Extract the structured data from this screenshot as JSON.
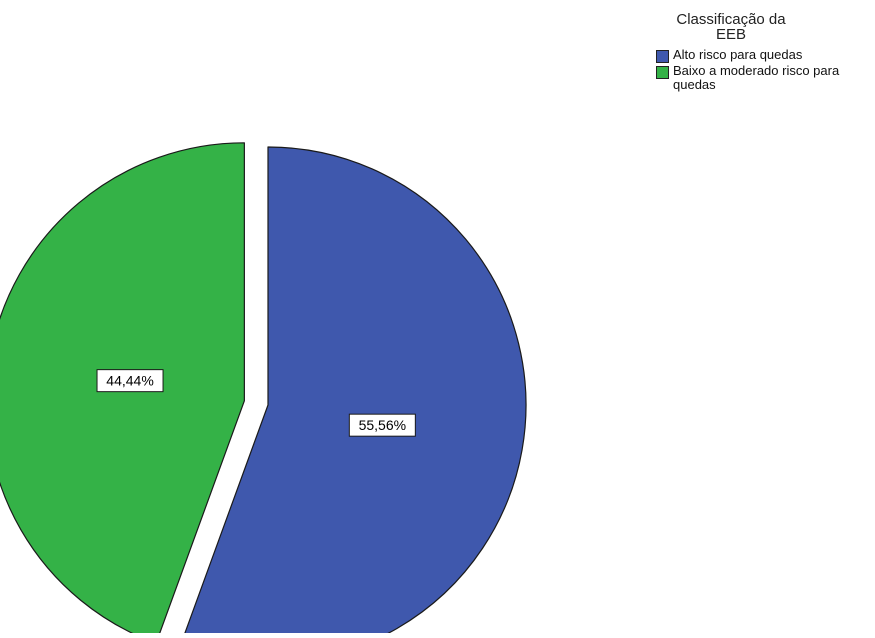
{
  "chart_data": {
    "type": "pie",
    "categories": [
      "Alto risco para quedas",
      "Baixo a moderado risco para quedas"
    ],
    "values": [
      55.56,
      44.44
    ],
    "value_labels": [
      "55,56%",
      "44,44%"
    ],
    "colors": [
      "#3f58ad",
      "#34b247"
    ],
    "exploded": [
      false,
      true
    ],
    "start_angle_deg": 0,
    "direction": "clockwise",
    "legend": {
      "title_lines": [
        "Classificação da",
        "EEB"
      ],
      "placement": "top-right"
    }
  }
}
